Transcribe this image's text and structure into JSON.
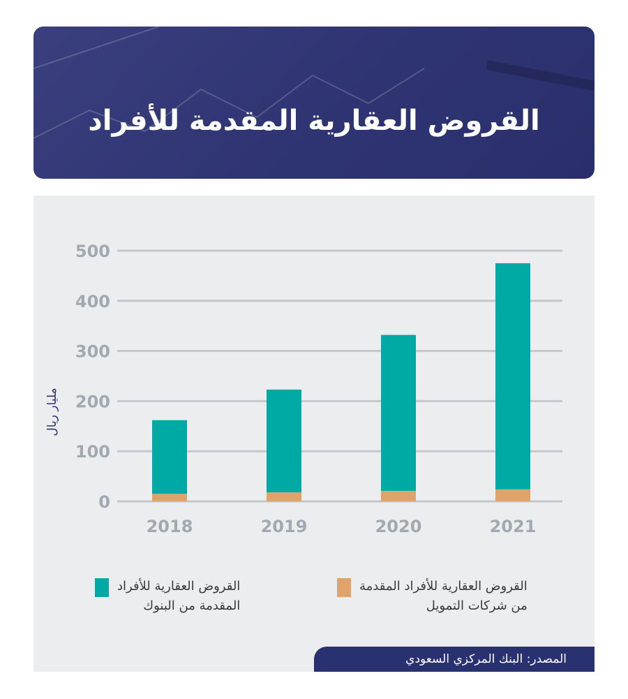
{
  "header": {
    "title": "القروض العقارية المقدمة للأفراد"
  },
  "chart_data": {
    "type": "bar",
    "stacked": true,
    "title": "القروض العقارية المقدمة للأفراد",
    "ylabel": "مليار ريال",
    "xlabel": "",
    "categories": [
      "2018",
      "2019",
      "2020",
      "2021"
    ],
    "ylim": [
      0,
      500
    ],
    "yticks": [
      "0",
      "100",
      "200",
      "300",
      "400",
      "500"
    ],
    "grid": true,
    "series": [
      {
        "name": "القروض العقارية للأفراد المقدمة من شركات التمويل",
        "color": "#e0a46b",
        "values": [
          15,
          18,
          21,
          24
        ]
      },
      {
        "name": "القروض العقارية للأفراد المقدمة من البنوك",
        "color": "#00aaa4",
        "values": [
          147,
          205,
          311,
          451
        ]
      }
    ],
    "legend": [
      {
        "line1": "القروض العقارية للأفراد المقدمة",
        "line2": "من شركات التمويل"
      },
      {
        "line1": "القروض العقارية للأفراد",
        "line2": "المقدمة من البنوك"
      }
    ],
    "legend_placement": "bottom"
  },
  "source": "المصدر: البنك المركزي السعودي"
}
